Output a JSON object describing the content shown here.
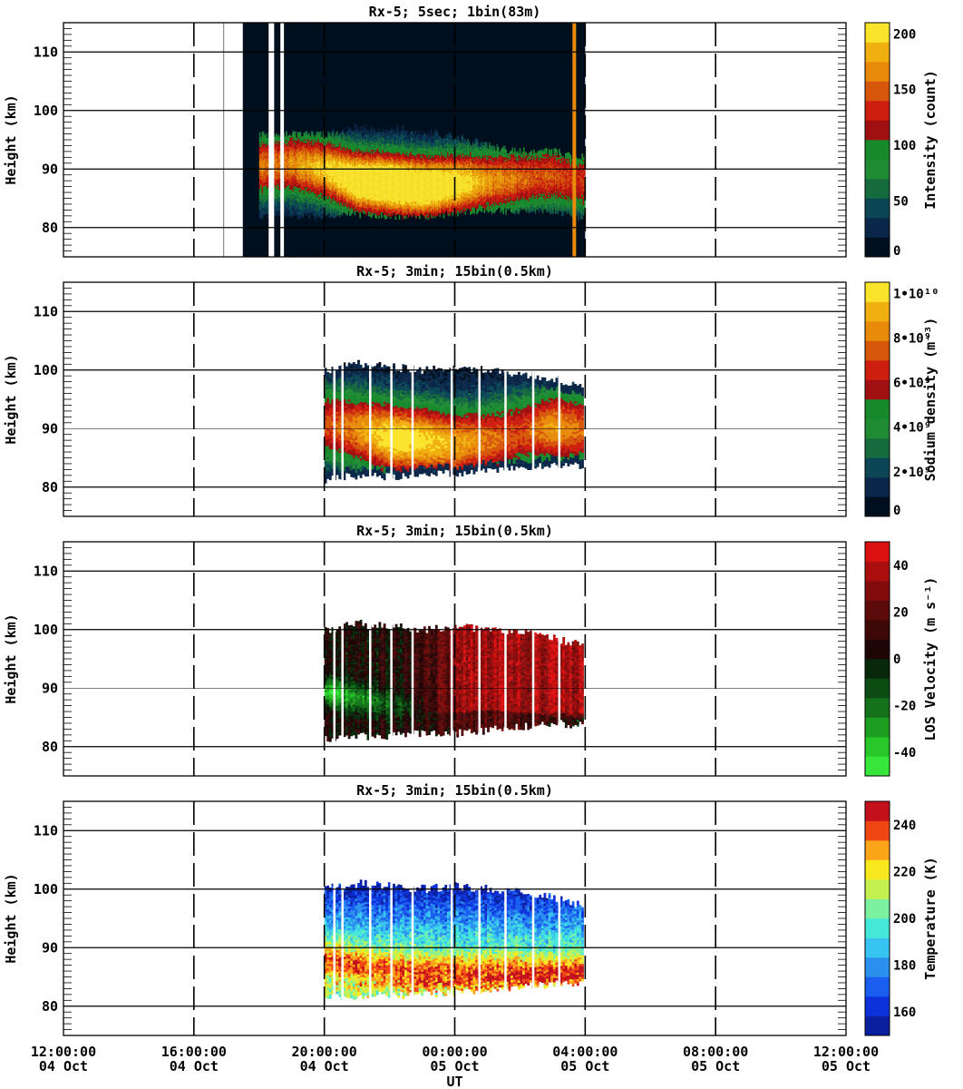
{
  "chart_data": [
    {
      "type": "heatmap",
      "title": "Rx-5;  5sec; 1bin(83m)",
      "ylabel": "Height (km)",
      "ylim": [
        75,
        115
      ],
      "yticks": [
        80,
        90,
        100,
        110
      ],
      "colorbar": {
        "label": "Intensity (count)",
        "min": 0,
        "max": 210,
        "ticks": [
          {
            "v": 0,
            "label": "0"
          },
          {
            "v": 50,
            "label": "50"
          },
          {
            "v": 100,
            "label": "100"
          },
          {
            "v": 150,
            "label": "150"
          },
          {
            "v": 200,
            "label": "200"
          }
        ],
        "colors": [
          "#000f1e",
          "#0a2648",
          "#0b4656",
          "#156a3e",
          "#1f8c34",
          "#168a2a",
          "#a11010",
          "#cd1e10",
          "#d6560a",
          "#e88a0a",
          "#f0b010",
          "#fce42c"
        ]
      },
      "coverage": {
        "start_h": 17.5,
        "end_h": 28.0
      },
      "gaps_h": [
        18.32,
        18.36,
        18.42,
        18.68,
        18.72
      ],
      "layer": [
        {
          "t": 18.0,
          "top": 96,
          "bottom": 82,
          "peak": 90.5,
          "strength": 0.7
        },
        {
          "t": 19.0,
          "top": 96,
          "bottom": 82,
          "peak": 91,
          "strength": 0.75
        },
        {
          "t": 20.0,
          "top": 96,
          "bottom": 82,
          "peak": 90,
          "strength": 0.9
        },
        {
          "t": 21.0,
          "top": 97,
          "bottom": 82.5,
          "peak": 88,
          "strength": 1.1
        },
        {
          "t": 22.0,
          "top": 97,
          "bottom": 82,
          "peak": 87.5,
          "strength": 1.2
        },
        {
          "t": 23.0,
          "top": 96.5,
          "bottom": 82,
          "peak": 87,
          "strength": 1.15
        },
        {
          "t": 24.0,
          "top": 95.5,
          "bottom": 82.5,
          "peak": 87.5,
          "strength": 1.0
        },
        {
          "t": 25.0,
          "top": 94,
          "bottom": 83,
          "peak": 88,
          "strength": 0.8
        },
        {
          "t": 26.0,
          "top": 93,
          "bottom": 83,
          "peak": 88.5,
          "strength": 0.7
        },
        {
          "t": 27.0,
          "top": 93,
          "bottom": 83,
          "peak": 89,
          "strength": 0.65
        },
        {
          "t": 27.8,
          "top": 92,
          "bottom": 82,
          "peak": 88,
          "strength": 0.6
        }
      ]
    },
    {
      "type": "heatmap",
      "title": "Rx-5; 3min; 15bin(0.5km)",
      "ylabel": "Height (km)",
      "ylim": [
        75,
        115
      ],
      "yticks": [
        80,
        90,
        100,
        110
      ],
      "colorbar": {
        "label": "Sodium density (m⁻³)",
        "min": 0,
        "max": 10.5,
        "ticks": [
          {
            "v": 0,
            "label": "0"
          },
          {
            "v": 2,
            "label": "2•10⁹"
          },
          {
            "v": 4,
            "label": "4•10⁹"
          },
          {
            "v": 6,
            "label": "6•10⁹"
          },
          {
            "v": 8,
            "label": "8•10⁹"
          },
          {
            "v": 10,
            "label": "1•10¹⁰"
          }
        ],
        "colors": [
          "#000f1e",
          "#0a2648",
          "#0b4656",
          "#156a3e",
          "#1f8c34",
          "#168a2a",
          "#a11010",
          "#cd1e10",
          "#d6560a",
          "#e88a0a",
          "#f0b010",
          "#fce42c"
        ]
      },
      "coverage": {
        "start_h": 20.0,
        "end_h": 27.9
      },
      "gaps_h": [
        20.3,
        20.55,
        21.4,
        22.05,
        22.7,
        23.9,
        24.75,
        25.55,
        26.4,
        27.2
      ],
      "layer": [
        {
          "t": 20.0,
          "top": 100,
          "bottom": 81.5,
          "peak": 91,
          "strength": 0.62
        },
        {
          "t": 21.0,
          "top": 101,
          "bottom": 82,
          "peak": 90,
          "strength": 0.75
        },
        {
          "t": 22.0,
          "top": 100.5,
          "bottom": 82,
          "peak": 88.5,
          "strength": 0.95
        },
        {
          "t": 23.0,
          "top": 100,
          "bottom": 82.5,
          "peak": 88,
          "strength": 0.9
        },
        {
          "t": 24.0,
          "top": 100.5,
          "bottom": 82.5,
          "peak": 87.5,
          "strength": 0.8
        },
        {
          "t": 25.0,
          "top": 100,
          "bottom": 83,
          "peak": 88,
          "strength": 0.7
        },
        {
          "t": 26.0,
          "top": 99.5,
          "bottom": 83.5,
          "peak": 89.5,
          "strength": 0.62
        },
        {
          "t": 27.0,
          "top": 98.5,
          "bottom": 84,
          "peak": 90.5,
          "strength": 0.78
        },
        {
          "t": 27.8,
          "top": 97.5,
          "bottom": 84,
          "peak": 90,
          "strength": 0.68
        }
      ]
    },
    {
      "type": "heatmap",
      "title": "Rx-5; 3min; 15bin(0.5km)",
      "ylabel": "Height (km)",
      "ylim": [
        75,
        115
      ],
      "yticks": [
        80,
        90,
        100,
        110
      ],
      "colorbar": {
        "label": "LOS Velocity (m s⁻¹)",
        "min": -50,
        "max": 50,
        "ticks": [
          {
            "v": -40,
            "label": "-40"
          },
          {
            "v": -20,
            "label": "-20"
          },
          {
            "v": 0,
            "label": "0"
          },
          {
            "v": 20,
            "label": "20"
          },
          {
            "v": 40,
            "label": "40"
          }
        ],
        "colors": [
          "#36e63a",
          "#28c82a",
          "#1e9e20",
          "#13721a",
          "#0c4c12",
          "#07280a",
          "#1e0606",
          "#3e0808",
          "#5c0a0a",
          "#820c0c",
          "#ac0e0e",
          "#dc1212"
        ]
      },
      "coverage": {
        "start_h": 20.0,
        "end_h": 27.9
      },
      "gaps_h": [
        20.3,
        20.55,
        21.4,
        22.05,
        22.7,
        23.9,
        24.75,
        25.55,
        26.4,
        27.2
      ],
      "layer": [
        {
          "t": 20.0,
          "top": 100,
          "bottom": 81.5,
          "peak": 91,
          "strength": 0
        },
        {
          "t": 21.0,
          "top": 101,
          "bottom": 82,
          "peak": 90,
          "strength": 0
        },
        {
          "t": 22.0,
          "top": 100.5,
          "bottom": 82,
          "peak": 89,
          "strength": 0
        },
        {
          "t": 23.0,
          "top": 100,
          "bottom": 82.5,
          "peak": 88,
          "strength": 0
        },
        {
          "t": 24.0,
          "top": 100.5,
          "bottom": 82.5,
          "peak": 88,
          "strength": 0
        },
        {
          "t": 25.0,
          "top": 100,
          "bottom": 83,
          "peak": 88.5,
          "strength": 0
        },
        {
          "t": 26.0,
          "top": 99.5,
          "bottom": 83.5,
          "peak": 88,
          "strength": 0
        },
        {
          "t": 27.0,
          "top": 98.5,
          "bottom": 84,
          "peak": 87.5,
          "strength": 0
        },
        {
          "t": 27.8,
          "top": 97.5,
          "bottom": 84,
          "peak": 87,
          "strength": 0
        }
      ]
    },
    {
      "type": "heatmap",
      "title": "Rx-5; 3min; 15bin(0.5km)",
      "ylabel": "Height (km)",
      "ylim": [
        75,
        115
      ],
      "yticks": [
        80,
        90,
        100,
        110
      ],
      "xlabel": "UT",
      "colorbar": {
        "label": "Temperature (K)",
        "min": 150,
        "max": 250,
        "ticks": [
          {
            "v": 160,
            "label": "160"
          },
          {
            "v": 180,
            "label": "180"
          },
          {
            "v": 200,
            "label": "200"
          },
          {
            "v": 220,
            "label": "220"
          },
          {
            "v": 240,
            "label": "240"
          }
        ],
        "colors": [
          "#0a1ea0",
          "#0c32dc",
          "#1a5ef0",
          "#2a90ee",
          "#38c4f0",
          "#44e8d8",
          "#7cf2a0",
          "#c4f050",
          "#f8e81e",
          "#fca418",
          "#f04614",
          "#c4101a"
        ]
      },
      "coverage": {
        "start_h": 20.0,
        "end_h": 27.9
      },
      "gaps_h": [
        20.3,
        20.55,
        21.4,
        22.05,
        22.7,
        23.9,
        24.75,
        25.55,
        26.4,
        27.2
      ],
      "layer": [
        {
          "t": 20.0,
          "top": 100,
          "bottom": 81.5,
          "peak": 88,
          "strength": 0
        },
        {
          "t": 21.0,
          "top": 101,
          "bottom": 82,
          "peak": 87,
          "strength": 0
        },
        {
          "t": 22.0,
          "top": 100.5,
          "bottom": 82,
          "peak": 86.5,
          "strength": 0
        },
        {
          "t": 23.0,
          "top": 100,
          "bottom": 82.5,
          "peak": 86,
          "strength": 0
        },
        {
          "t": 24.0,
          "top": 100.5,
          "bottom": 82.5,
          "peak": 86,
          "strength": 0
        },
        {
          "t": 25.0,
          "top": 100,
          "bottom": 83,
          "peak": 86,
          "strength": 0
        },
        {
          "t": 26.0,
          "top": 99.5,
          "bottom": 83.5,
          "peak": 86,
          "strength": 0
        },
        {
          "t": 27.0,
          "top": 98.5,
          "bottom": 84,
          "peak": 86,
          "strength": 0
        },
        {
          "t": 27.8,
          "top": 97.5,
          "bottom": 84,
          "peak": 86,
          "strength": 0
        }
      ]
    }
  ],
  "time_axis": {
    "label": "UT",
    "range_h": [
      12,
      36
    ],
    "ticks": [
      {
        "h": 12,
        "time": "12:00:00",
        "date": "04 Oct"
      },
      {
        "h": 16,
        "time": "16:00:00",
        "date": "04 Oct"
      },
      {
        "h": 20,
        "time": "20:00:00",
        "date": "04 Oct"
      },
      {
        "h": 24,
        "time": "00:00:00",
        "date": "05 Oct"
      },
      {
        "h": 28,
        "time": "04:00:00",
        "date": "05 Oct"
      },
      {
        "h": 32,
        "time": "08:00:00",
        "date": "05 Oct"
      },
      {
        "h": 36,
        "time": "12:00:00",
        "date": "05 Oct"
      }
    ]
  }
}
